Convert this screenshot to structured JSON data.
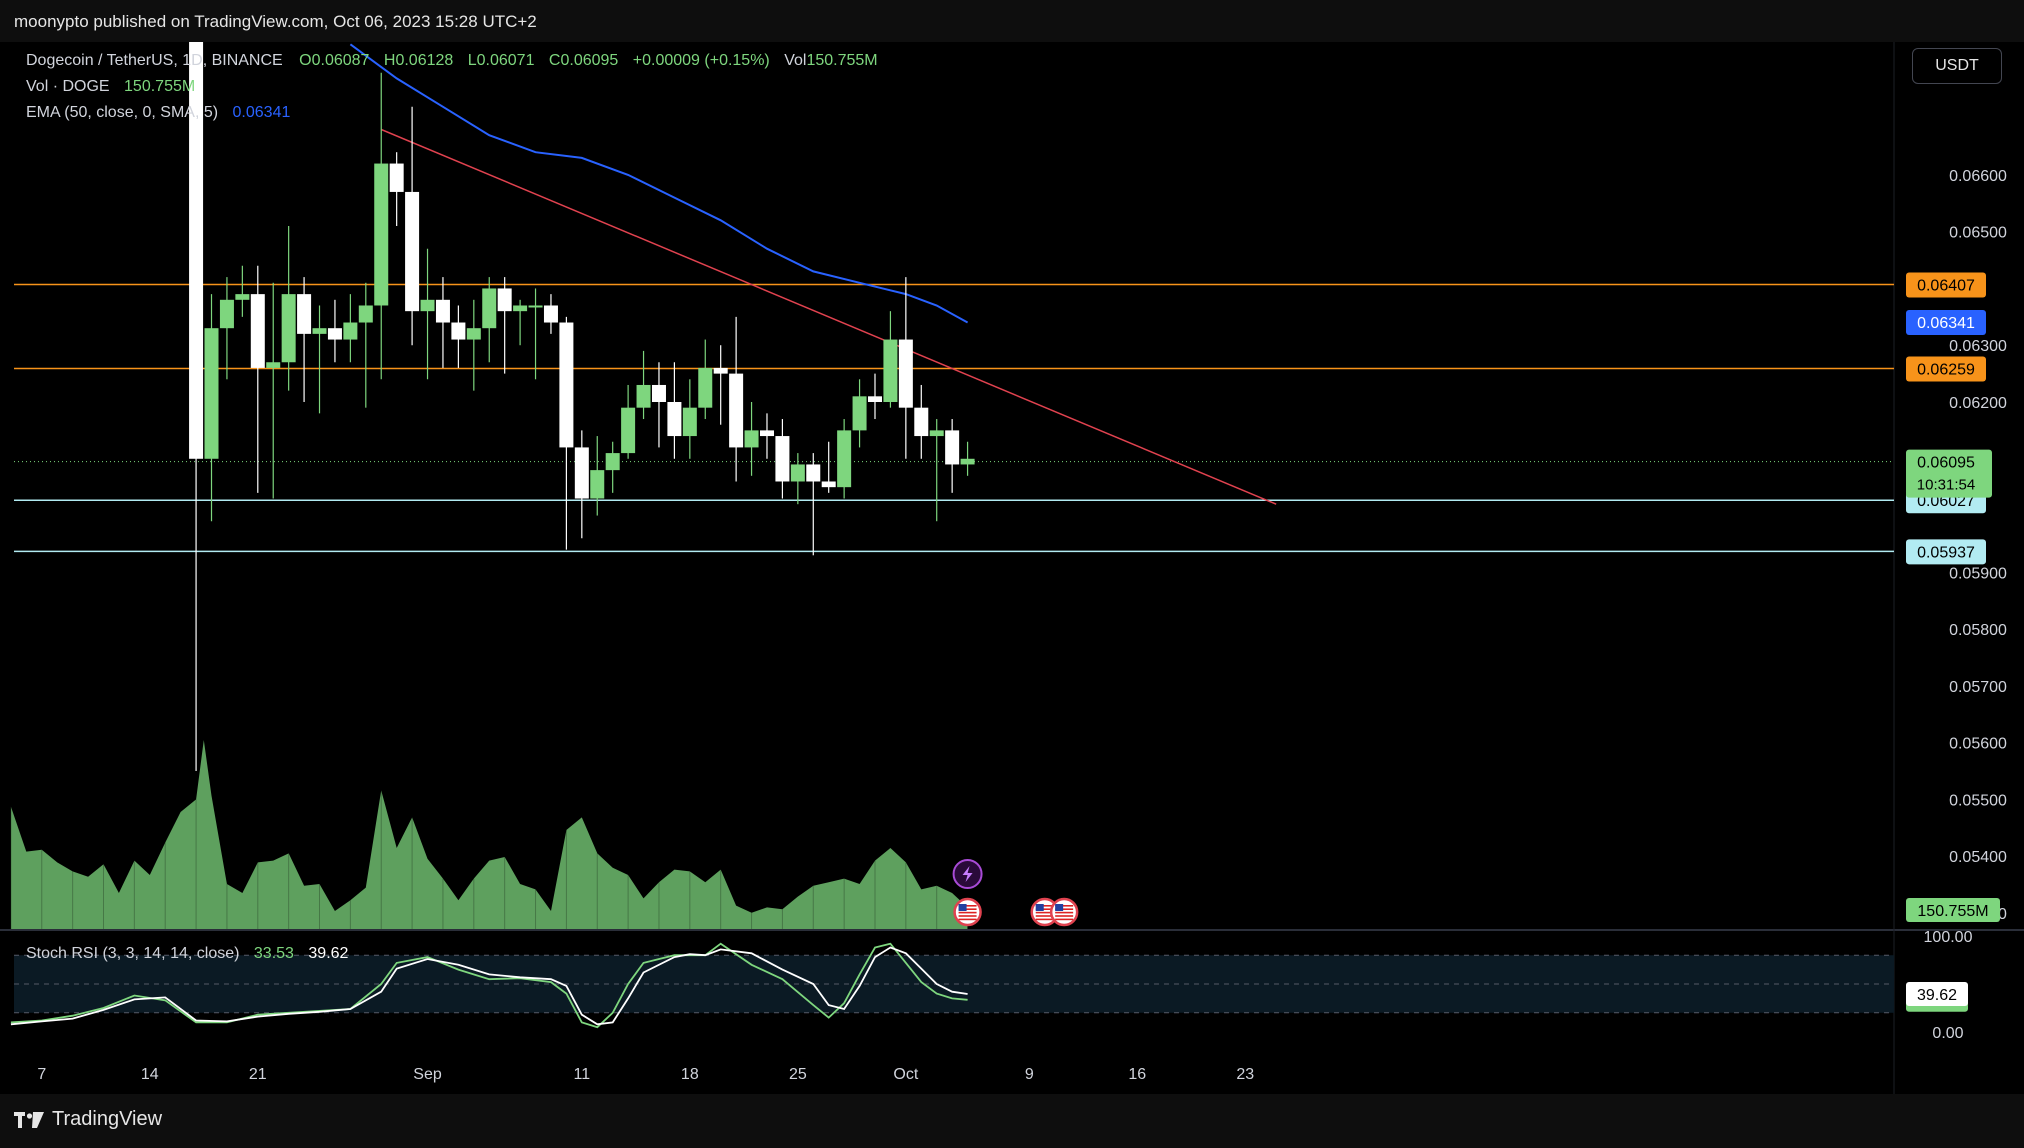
{
  "header": {
    "published_text": "moonypto published on TradingView.com, Oct 06, 2023 15:28 UTC+2"
  },
  "footer": {
    "brand": "TradingView"
  },
  "currency_button": "USDT",
  "legend": {
    "symbol": "Dogecoin / TetherUS, 1D, BINANCE",
    "open": "O0.06087",
    "high": "H0.06128",
    "low": "L0.06071",
    "close": "C0.06095",
    "change": "+0.00009 (+0.15%)",
    "vol_label": "Vol",
    "vol_value": "150.755M",
    "vol_series_label": "Vol · DOGE",
    "vol_series_value": "150.755M",
    "ema_label": "EMA (50, close, 0, SMA, 5)",
    "ema_value": "0.06341",
    "stoch_label": "Stoch RSI (3, 3, 14, 14, close)",
    "stoch_k": "33.53",
    "stoch_d": "39.62"
  },
  "colors": {
    "bull": "#7ed67e",
    "bear": "#ffffff",
    "ema": "#2962ff",
    "trendline": "#e0424f",
    "resistance": "#f7931a",
    "support": "#b2ebf2",
    "volume": "#7ed67e"
  },
  "chart_data": [
    {
      "type": "candlestick",
      "title": "Dogecoin / TetherUS, 1D, BINANCE",
      "y_axis": {
        "ticks": [
          "0.06600",
          "0.06500",
          "0.06300",
          "0.06200",
          "0.05900",
          "0.05800",
          "0.05700",
          "0.05600",
          "0.05500",
          "0.05400",
          "0.05300"
        ],
        "ylim": [
          0.0527,
          0.0682
        ]
      },
      "x_axis": {
        "ticks": [
          "7",
          "14",
          "21",
          "Sep",
          "11",
          "18",
          "25",
          "Oct",
          "9",
          "16",
          "23"
        ],
        "tick_days": [
          7,
          14,
          21,
          32,
          42,
          49,
          56,
          63,
          71,
          78,
          85
        ]
      },
      "candles": [
        {
          "d": 17,
          "o": 0.0686,
          "h": 0.0695,
          "l": 0.0555,
          "c": 0.061
        },
        {
          "d": 18,
          "o": 0.061,
          "h": 0.0639,
          "l": 0.0599,
          "c": 0.0633
        },
        {
          "d": 19,
          "o": 0.0633,
          "h": 0.0642,
          "l": 0.0624,
          "c": 0.0638
        },
        {
          "d": 20,
          "o": 0.0638,
          "h": 0.0644,
          "l": 0.0635,
          "c": 0.0639
        },
        {
          "d": 21,
          "o": 0.0639,
          "h": 0.0644,
          "l": 0.0604,
          "c": 0.0626
        },
        {
          "d": 22,
          "o": 0.0626,
          "h": 0.0641,
          "l": 0.0603,
          "c": 0.0627
        },
        {
          "d": 23,
          "o": 0.0627,
          "h": 0.0651,
          "l": 0.0622,
          "c": 0.0639
        },
        {
          "d": 24,
          "o": 0.0639,
          "h": 0.0642,
          "l": 0.062,
          "c": 0.0632
        },
        {
          "d": 25,
          "o": 0.0632,
          "h": 0.0637,
          "l": 0.0618,
          "c": 0.0633
        },
        {
          "d": 26,
          "o": 0.0633,
          "h": 0.0638,
          "l": 0.0627,
          "c": 0.0631
        },
        {
          "d": 27,
          "o": 0.0631,
          "h": 0.0639,
          "l": 0.0627,
          "c": 0.0634
        },
        {
          "d": 28,
          "o": 0.0634,
          "h": 0.0641,
          "l": 0.0619,
          "c": 0.0637
        },
        {
          "d": 29,
          "o": 0.0637,
          "h": 0.0678,
          "l": 0.0624,
          "c": 0.0662
        },
        {
          "d": 30,
          "o": 0.0662,
          "h": 0.0664,
          "l": 0.0651,
          "c": 0.0657
        },
        {
          "d": 31,
          "o": 0.0657,
          "h": 0.0672,
          "l": 0.063,
          "c": 0.0636
        },
        {
          "d": 32,
          "o": 0.0636,
          "h": 0.0647,
          "l": 0.0624,
          "c": 0.0638
        },
        {
          "d": 33,
          "o": 0.0638,
          "h": 0.0642,
          "l": 0.0626,
          "c": 0.0634
        },
        {
          "d": 34,
          "o": 0.0634,
          "h": 0.0637,
          "l": 0.0626,
          "c": 0.0631
        },
        {
          "d": 35,
          "o": 0.0631,
          "h": 0.0638,
          "l": 0.0622,
          "c": 0.0633
        },
        {
          "d": 36,
          "o": 0.0633,
          "h": 0.0642,
          "l": 0.0627,
          "c": 0.064
        },
        {
          "d": 37,
          "o": 0.064,
          "h": 0.0642,
          "l": 0.0625,
          "c": 0.0636
        },
        {
          "d": 38,
          "o": 0.0636,
          "h": 0.0638,
          "l": 0.063,
          "c": 0.0637
        },
        {
          "d": 39,
          "o": 0.0637,
          "h": 0.064,
          "l": 0.0624,
          "c": 0.0637
        },
        {
          "d": 40,
          "o": 0.0637,
          "h": 0.0639,
          "l": 0.0632,
          "c": 0.0634
        },
        {
          "d": 41,
          "o": 0.0634,
          "h": 0.0635,
          "l": 0.0594,
          "c": 0.0612
        },
        {
          "d": 42,
          "o": 0.0612,
          "h": 0.0615,
          "l": 0.0596,
          "c": 0.0603
        },
        {
          "d": 43,
          "o": 0.0603,
          "h": 0.0614,
          "l": 0.06,
          "c": 0.0608
        },
        {
          "d": 44,
          "o": 0.0608,
          "h": 0.0613,
          "l": 0.0604,
          "c": 0.0611
        },
        {
          "d": 45,
          "o": 0.0611,
          "h": 0.0623,
          "l": 0.061,
          "c": 0.0619
        },
        {
          "d": 46,
          "o": 0.0619,
          "h": 0.0629,
          "l": 0.0617,
          "c": 0.0623
        },
        {
          "d": 47,
          "o": 0.0623,
          "h": 0.0627,
          "l": 0.0612,
          "c": 0.062
        },
        {
          "d": 48,
          "o": 0.062,
          "h": 0.0627,
          "l": 0.061,
          "c": 0.0614
        },
        {
          "d": 49,
          "o": 0.0614,
          "h": 0.0624,
          "l": 0.061,
          "c": 0.0619
        },
        {
          "d": 50,
          "o": 0.0619,
          "h": 0.0631,
          "l": 0.0617,
          "c": 0.0626
        },
        {
          "d": 51,
          "o": 0.0626,
          "h": 0.063,
          "l": 0.0616,
          "c": 0.0625
        },
        {
          "d": 52,
          "o": 0.0625,
          "h": 0.0635,
          "l": 0.0606,
          "c": 0.0612
        },
        {
          "d": 53,
          "o": 0.0612,
          "h": 0.062,
          "l": 0.0607,
          "c": 0.0615
        },
        {
          "d": 54,
          "o": 0.0615,
          "h": 0.0618,
          "l": 0.061,
          "c": 0.0614
        },
        {
          "d": 55,
          "o": 0.0614,
          "h": 0.0617,
          "l": 0.0603,
          "c": 0.0606
        },
        {
          "d": 56,
          "o": 0.0606,
          "h": 0.0611,
          "l": 0.0602,
          "c": 0.0609
        },
        {
          "d": 57,
          "o": 0.0609,
          "h": 0.0611,
          "l": 0.0593,
          "c": 0.0606
        },
        {
          "d": 58,
          "o": 0.0606,
          "h": 0.0613,
          "l": 0.0604,
          "c": 0.0605
        },
        {
          "d": 59,
          "o": 0.0605,
          "h": 0.0617,
          "l": 0.0603,
          "c": 0.0615
        },
        {
          "d": 60,
          "o": 0.0615,
          "h": 0.0624,
          "l": 0.0612,
          "c": 0.0621
        },
        {
          "d": 61,
          "o": 0.0621,
          "h": 0.0625,
          "l": 0.0617,
          "c": 0.062
        },
        {
          "d": 62,
          "o": 0.062,
          "h": 0.0636,
          "l": 0.0619,
          "c": 0.0631
        },
        {
          "d": 63,
          "o": 0.0631,
          "h": 0.0642,
          "l": 0.061,
          "c": 0.0619
        },
        {
          "d": 64,
          "o": 0.0619,
          "h": 0.0623,
          "l": 0.061,
          "c": 0.0614
        },
        {
          "d": 65,
          "o": 0.0614,
          "h": 0.0617,
          "l": 0.0599,
          "c": 0.0615
        },
        {
          "d": 66,
          "o": 0.0615,
          "h": 0.0617,
          "l": 0.0604,
          "c": 0.0609
        },
        {
          "d": 67,
          "o": 0.0609,
          "h": 0.0613,
          "l": 0.0607,
          "c": 0.061
        }
      ],
      "ema": {
        "name": "EMA (50, close, 0, SMA, 5)",
        "points": [
          [
            27,
            0.0683
          ],
          [
            30,
            0.0677
          ],
          [
            33,
            0.0672
          ],
          [
            36,
            0.0667
          ],
          [
            39,
            0.0664
          ],
          [
            42,
            0.0663
          ],
          [
            45,
            0.066
          ],
          [
            48,
            0.0656
          ],
          [
            51,
            0.0652
          ],
          [
            54,
            0.0647
          ],
          [
            57,
            0.0643
          ],
          [
            60,
            0.0641
          ],
          [
            63,
            0.0639
          ],
          [
            65,
            0.0637
          ],
          [
            67,
            0.0634
          ]
        ]
      },
      "trendline": {
        "start": [
          29,
          0.0668
        ],
        "end": [
          87,
          0.0602
        ]
      },
      "levels": [
        {
          "value": 0.06407,
          "label": "0.06407",
          "kind": "resistance"
        },
        {
          "value": 0.06259,
          "label": "0.06259",
          "kind": "resistance"
        },
        {
          "value": 0.06027,
          "label": "0.06027",
          "kind": "support"
        },
        {
          "value": 0.05937,
          "label": "0.05937",
          "kind": "support"
        }
      ],
      "price_tags": [
        {
          "label": "0.06341",
          "value": 0.06341,
          "kind": "ema"
        },
        {
          "label": "0.06095",
          "value": 0.06095,
          "kind": "last",
          "countdown": "10:31:54"
        }
      ]
    },
    {
      "type": "area",
      "name": "Vol · DOGE",
      "last_value_label": "150.755M",
      "values": [
        [
          5,
          0.68
        ],
        [
          6,
          0.43
        ],
        [
          7,
          0.44
        ],
        [
          8,
          0.37
        ],
        [
          9,
          0.32
        ],
        [
          10,
          0.29
        ],
        [
          11,
          0.36
        ],
        [
          12,
          0.2
        ],
        [
          13,
          0.38
        ],
        [
          14,
          0.3
        ],
        [
          15,
          0.48
        ],
        [
          16,
          0.65
        ],
        [
          17,
          0.72
        ],
        [
          17.5,
          1.05
        ],
        [
          18,
          0.74
        ],
        [
          19,
          0.25
        ],
        [
          20,
          0.2
        ],
        [
          21,
          0.37
        ],
        [
          22,
          0.38
        ],
        [
          23,
          0.42
        ],
        [
          24,
          0.24
        ],
        [
          25,
          0.25
        ],
        [
          26,
          0.1
        ],
        [
          27,
          0.16
        ],
        [
          28,
          0.23
        ],
        [
          29,
          0.77
        ],
        [
          30,
          0.45
        ],
        [
          31,
          0.62
        ],
        [
          32,
          0.39
        ],
        [
          33,
          0.28
        ],
        [
          34,
          0.16
        ],
        [
          35,
          0.28
        ],
        [
          36,
          0.38
        ],
        [
          37,
          0.4
        ],
        [
          38,
          0.25
        ],
        [
          39,
          0.22
        ],
        [
          40,
          0.1
        ],
        [
          41,
          0.55
        ],
        [
          42,
          0.62
        ],
        [
          43,
          0.42
        ],
        [
          44,
          0.34
        ],
        [
          45,
          0.3
        ],
        [
          46,
          0.17
        ],
        [
          47,
          0.26
        ],
        [
          48,
          0.33
        ],
        [
          49,
          0.32
        ],
        [
          50,
          0.26
        ],
        [
          51,
          0.33
        ],
        [
          52,
          0.13
        ],
        [
          53,
          0.09
        ],
        [
          54,
          0.12
        ],
        [
          55,
          0.11
        ],
        [
          56,
          0.18
        ],
        [
          57,
          0.24
        ],
        [
          58,
          0.26
        ],
        [
          59,
          0.28
        ],
        [
          60,
          0.25
        ],
        [
          61,
          0.38
        ],
        [
          62,
          0.45
        ],
        [
          63,
          0.37
        ],
        [
          64,
          0.22
        ],
        [
          65,
          0.24
        ],
        [
          66,
          0.2
        ],
        [
          67,
          0.12
        ]
      ],
      "markers": [
        {
          "x": 67,
          "icon": "lightning-icon"
        },
        {
          "x": 67,
          "icon": "us-flag-icon"
        },
        {
          "x": 72,
          "icon": "us-flag-icon"
        },
        {
          "x": 73,
          "icon": "us-flag-icon"
        }
      ]
    },
    {
      "type": "line",
      "name": "Stoch RSI (3, 3, 14, 14, close)",
      "ylim": [
        0,
        100
      ],
      "y_ticks": [
        "100.00",
        "0.00"
      ],
      "band": [
        20,
        80
      ],
      "series": [
        {
          "name": "K",
          "color": "#7ed67e",
          "last_label": "33.53",
          "points": [
            [
              5,
              10
            ],
            [
              7,
              12
            ],
            [
              9,
              17
            ],
            [
              11,
              25
            ],
            [
              13,
              38
            ],
            [
              15,
              33
            ],
            [
              17,
              10
            ],
            [
              19,
              10
            ],
            [
              21,
              18
            ],
            [
              23,
              20
            ],
            [
              25,
              22
            ],
            [
              27,
              24
            ],
            [
              29,
              50
            ],
            [
              30,
              72
            ],
            [
              32,
              78
            ],
            [
              34,
              65
            ],
            [
              36,
              55
            ],
            [
              38,
              56
            ],
            [
              40,
              52
            ],
            [
              41,
              40
            ],
            [
              42,
              10
            ],
            [
              43,
              5
            ],
            [
              44,
              20
            ],
            [
              45,
              50
            ],
            [
              46,
              72
            ],
            [
              48,
              80
            ],
            [
              49,
              80
            ],
            [
              50,
              80
            ],
            [
              51,
              92
            ],
            [
              53,
              70
            ],
            [
              55,
              55
            ],
            [
              57,
              28
            ],
            [
              58,
              15
            ],
            [
              59,
              30
            ],
            [
              60,
              60
            ],
            [
              61,
              88
            ],
            [
              62,
              92
            ],
            [
              63,
              72
            ],
            [
              64,
              52
            ],
            [
              65,
              40
            ],
            [
              66,
              35
            ],
            [
              67,
              33.53
            ]
          ]
        },
        {
          "name": "D",
          "color": "#ffffff",
          "last_label": "39.62",
          "points": [
            [
              5,
              8
            ],
            [
              7,
              11
            ],
            [
              9,
              14
            ],
            [
              11,
              23
            ],
            [
              13,
              34
            ],
            [
              15,
              36
            ],
            [
              17,
              12
            ],
            [
              19,
              11
            ],
            [
              21,
              16
            ],
            [
              23,
              19
            ],
            [
              25,
              21
            ],
            [
              27,
              24
            ],
            [
              29,
              42
            ],
            [
              30,
              66
            ],
            [
              32,
              76
            ],
            [
              34,
              70
            ],
            [
              36,
              60
            ],
            [
              38,
              57
            ],
            [
              40,
              55
            ],
            [
              41,
              48
            ],
            [
              42,
              18
            ],
            [
              43,
              8
            ],
            [
              44,
              10
            ],
            [
              45,
              35
            ],
            [
              46,
              62
            ],
            [
              48,
              78
            ],
            [
              49,
              81
            ],
            [
              50,
              80
            ],
            [
              51,
              86
            ],
            [
              53,
              82
            ],
            [
              55,
              65
            ],
            [
              57,
              50
            ],
            [
              58,
              28
            ],
            [
              59,
              24
            ],
            [
              60,
              48
            ],
            [
              61,
              78
            ],
            [
              62,
              88
            ],
            [
              63,
              82
            ],
            [
              64,
              66
            ],
            [
              65,
              50
            ],
            [
              66,
              42
            ],
            [
              67,
              39.62
            ]
          ]
        }
      ]
    }
  ]
}
